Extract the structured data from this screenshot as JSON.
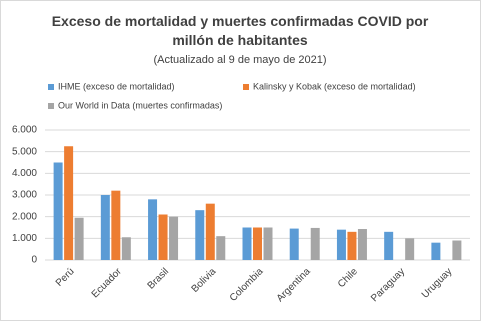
{
  "chart_data": {
    "type": "bar",
    "title": "Exceso de mortalidad y muertes confirmadas COVID por millón de habitantes",
    "subtitle": "(Actualizado al 9 de mayo de 2021)",
    "categories": [
      "Perú",
      "Ecuador",
      "Brasil",
      "Bolivia",
      "Colombia",
      "Argentina",
      "Chile",
      "Paraguay",
      "Uruguay"
    ],
    "series": [
      {
        "name": "IHME (exceso de mortalidad)",
        "color": "#5b9bd5",
        "values": [
          4500,
          3000,
          2800,
          2300,
          1500,
          1450,
          1400,
          1300,
          800
        ]
      },
      {
        "name": "Kalinsky y Kobak (exceso de mortalidad)",
        "color": "#ed7d31",
        "values": [
          5250,
          3200,
          2100,
          2600,
          1500,
          null,
          1300,
          null,
          null
        ]
      },
      {
        "name": "Our World in Data (muertes confirmadas)",
        "color": "#a5a5a5",
        "values": [
          1950,
          1050,
          2000,
          1100,
          1500,
          1480,
          1430,
          1000,
          900
        ]
      }
    ],
    "ylim": [
      0,
      6000
    ],
    "yticks": [
      0,
      {
        "value": 1000,
        "label": "1.000"
      },
      {
        "value": 2000,
        "label": "2.000"
      },
      {
        "value": 3000,
        "label": "3.000"
      },
      {
        "value": 4000,
        "label": "4.000"
      },
      {
        "value": 5000,
        "label": "5.000"
      },
      {
        "value": 6000,
        "label": "6.000"
      }
    ],
    "grid": true
  }
}
